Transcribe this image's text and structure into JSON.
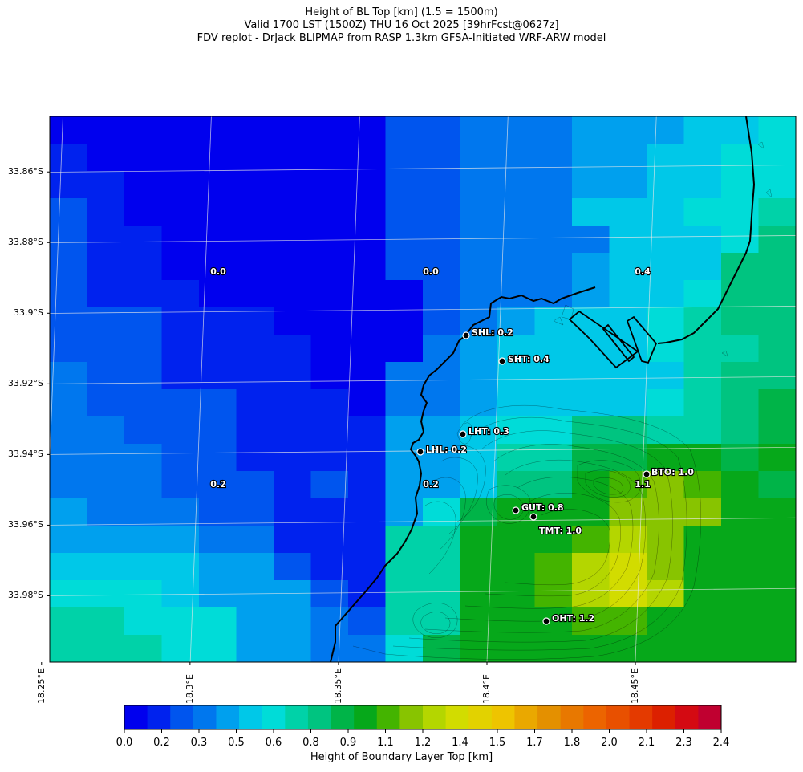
{
  "titles": {
    "line1": "Height of BL Top [km] (1.5 = 1500m)",
    "line2": "Valid 1700 LST (1500Z) THU 16 Oct 2025 [39hrFcst@0627z]",
    "line3": "FDV replot - DrJack BLIPMAP from RASP 1.3km GFSA-Initiated WRF-ARW model"
  },
  "axes": {
    "lat_labels": [
      "33.86°S",
      "33.88°S",
      "33.9°S",
      "33.92°S",
      "33.94°S",
      "33.96°S",
      "33.98°S"
    ],
    "lon_labels": [
      "18.25°E",
      "18.3°E",
      "18.35°E",
      "18.4°E",
      "18.45°E"
    ]
  },
  "colorbar": {
    "title": "Height of Boundary Layer Top [km]",
    "tick_labels": [
      "0.0",
      "0.2",
      "0.3",
      "0.5",
      "0.6",
      "0.8",
      "0.9",
      "1.1",
      "1.2",
      "1.4",
      "1.5",
      "1.7",
      "1.8",
      "2.0",
      "2.1",
      "2.3",
      "2.4"
    ],
    "colors": [
      "#0000ee",
      "#0022ee",
      "#0055ee",
      "#0077ee",
      "#00a0ee",
      "#00c8e8",
      "#00dcd8",
      "#00d2a8",
      "#00c480",
      "#00b448",
      "#06a81a",
      "#44b400",
      "#88c400",
      "#b4d600",
      "#d2dc00",
      "#e2d200",
      "#eec400",
      "#eaa800",
      "#e49000",
      "#e87800",
      "#ec6400",
      "#e85000",
      "#e43a00",
      "#dc2000",
      "#d40a12",
      "#c00030"
    ]
  },
  "grid_colors": {
    "a": "#0000ee",
    "b": "#0022ee",
    "c": "#0055ee",
    "d": "#0077ee",
    "e": "#00a0ee",
    "f": "#00c8e8",
    "g": "#00dcd8",
    "h": "#00d2a8",
    "i": "#00c480",
    "j": "#00b448",
    "k": "#06a81a",
    "l": "#44b400",
    "m": "#88c400",
    "n": "#b4d600",
    "o": "#d2dc00"
  },
  "grid_rows": [
    "aaaaaaaaaccdddeeeffg",
    "baaaaaaaaccdddeeffgg",
    "bbaaaaaaaccdddeeffgg",
    "cbaaaaaaaccdddfffggh",
    "cbbaaaaaaccddddfffgi",
    "cbbaaaaaaccdddefffii",
    "cbbbaaaaaacdddeffgii",
    "cccbbbaaaacdefffghii",
    "cccbbbbaaadeffffghhi",
    "dccbbbbaaddefffffhii",
    "dccccbbbaddeffffghij",
    "ddcccbbbbeefggiihhij",
    "dddccbbbbeefhhjjkkjk",
    "dddcccbcbeefiiklmlkj",
    "edddccbbbegjkkkmmmkk",
    "eeeeddbbbhhkkklnmkkk",
    "ffffeecbbhhkklnomkkk",
    "gggfeeecbhhkklnonkkk",
    "hhgggeedchhkkkllkkkk",
    "hhhggeeddgjkkkkkkkkk"
  ],
  "area_values": [
    {
      "text": "0.0",
      "lon": 18.3,
      "lat": -33.89
    },
    {
      "text": "0.0",
      "lon": 18.4,
      "lat": -33.89
    },
    {
      "text": "0.4",
      "lon": 18.5,
      "lat": -33.89
    },
    {
      "text": "0.2",
      "lon": 18.3,
      "lat": -33.95
    },
    {
      "text": "0.2",
      "lon": 18.4,
      "lat": -33.95
    },
    {
      "text": "1.1",
      "lon": 18.5,
      "lat": -33.95
    }
  ],
  "stations": [
    {
      "id": "SHL",
      "text": "SHL: 0.2",
      "lon": 18.4171,
      "lat": -33.9083
    },
    {
      "id": "SHT",
      "text": "SHT: 0.4",
      "lon": 18.4343,
      "lat": -33.9152
    },
    {
      "id": "LHT",
      "text": "LHT: 0.3",
      "lon": 18.4158,
      "lat": -33.9356
    },
    {
      "id": "LHL",
      "text": "LHL: 0.2",
      "lon": 18.3955,
      "lat": -33.9414
    },
    {
      "id": "BTO",
      "text": "BTO: 1.0",
      "lon": 18.5025,
      "lat": -33.9477
    },
    {
      "id": "GUT",
      "text": "GUT: 0.8",
      "lon": 18.4496,
      "lat": -33.9573
    },
    {
      "id": "TMT",
      "text": "TMT: 1.0",
      "lon": 18.4575,
      "lat": -33.9589
    },
    {
      "id": "OHT",
      "text": "OHT: 1.2",
      "lon": 18.4639,
      "lat": -33.99
    }
  ]
}
